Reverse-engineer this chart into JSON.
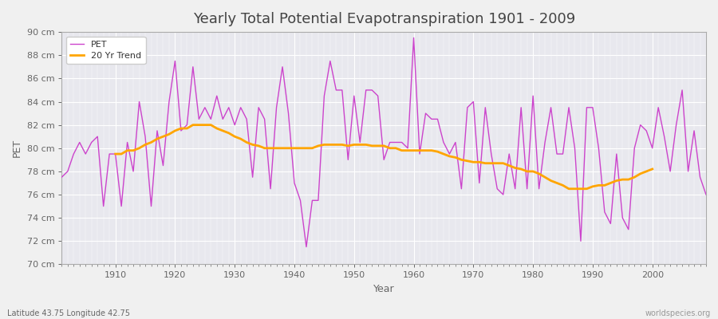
{
  "title": "Yearly Total Potential Evapotranspiration 1901 - 2009",
  "xlabel": "Year",
  "ylabel": "PET",
  "subtitle_left": "Latitude 43.75 Longitude 42.75",
  "subtitle_right": "worldspecies.org",
  "ylim": [
    70,
    90
  ],
  "ytick_values": [
    70,
    72,
    74,
    76,
    78,
    80,
    82,
    84,
    86,
    88,
    90
  ],
  "xtick_values": [
    1910,
    1920,
    1930,
    1940,
    1950,
    1960,
    1970,
    1980,
    1990,
    2000
  ],
  "pet_color": "#CC44CC",
  "trend_color": "#FFA500",
  "fig_bg_color": "#F0F0F0",
  "plot_bg_color": "#E8E8EE",
  "grid_color": "#FFFFFF",
  "title_color": "#444444",
  "label_color": "#666666",
  "tick_color": "#666666",
  "years": [
    1901,
    1902,
    1903,
    1904,
    1905,
    1906,
    1907,
    1908,
    1909,
    1910,
    1911,
    1912,
    1913,
    1914,
    1915,
    1916,
    1917,
    1918,
    1919,
    1920,
    1921,
    1922,
    1923,
    1924,
    1925,
    1926,
    1927,
    1928,
    1929,
    1930,
    1931,
    1932,
    1933,
    1934,
    1935,
    1936,
    1937,
    1938,
    1939,
    1940,
    1941,
    1942,
    1943,
    1944,
    1945,
    1946,
    1947,
    1948,
    1949,
    1950,
    1951,
    1952,
    1953,
    1954,
    1955,
    1956,
    1957,
    1958,
    1959,
    1960,
    1961,
    1962,
    1963,
    1964,
    1965,
    1966,
    1967,
    1968,
    1969,
    1970,
    1971,
    1972,
    1973,
    1974,
    1975,
    1976,
    1977,
    1978,
    1979,
    1980,
    1981,
    1982,
    1983,
    1984,
    1985,
    1986,
    1987,
    1988,
    1989,
    1990,
    1991,
    1992,
    1993,
    1994,
    1995,
    1996,
    1997,
    1998,
    1999,
    2000,
    2001,
    2002,
    2003,
    2004,
    2005,
    2006,
    2007,
    2008,
    2009
  ],
  "pet_values": [
    77.5,
    78.0,
    79.5,
    80.5,
    79.5,
    80.5,
    81.0,
    75.0,
    79.5,
    79.5,
    75.0,
    80.5,
    78.0,
    84.0,
    81.0,
    75.0,
    81.5,
    78.5,
    84.0,
    87.5,
    81.5,
    82.0,
    87.0,
    82.5,
    83.5,
    82.5,
    84.5,
    82.5,
    83.5,
    82.0,
    83.5,
    82.5,
    77.5,
    83.5,
    82.5,
    76.5,
    83.5,
    87.0,
    83.0,
    77.0,
    75.5,
    71.5,
    75.5,
    75.5,
    84.5,
    87.5,
    85.0,
    85.0,
    79.0,
    84.5,
    80.5,
    85.0,
    85.0,
    84.5,
    79.0,
    80.5,
    80.5,
    80.5,
    80.0,
    89.5,
    79.5,
    83.0,
    82.5,
    82.5,
    80.5,
    79.5,
    80.5,
    76.5,
    83.5,
    84.0,
    77.0,
    83.5,
    79.5,
    76.5,
    76.0,
    79.5,
    76.5,
    83.5,
    76.5,
    84.5,
    76.5,
    80.5,
    83.5,
    79.5,
    79.5,
    83.5,
    80.0,
    72.0,
    83.5,
    83.5,
    80.0,
    74.5,
    73.5,
    79.5,
    74.0,
    73.0,
    80.0,
    82.0,
    81.5,
    80.0,
    83.5,
    81.0,
    78.0,
    82.0,
    85.0,
    78.0,
    81.5,
    77.5,
    76.0
  ],
  "trend_values": [
    null,
    null,
    null,
    null,
    null,
    null,
    null,
    null,
    null,
    79.5,
    79.5,
    79.8,
    79.8,
    80.0,
    80.3,
    80.5,
    80.8,
    81.0,
    81.2,
    81.5,
    81.7,
    81.7,
    82.0,
    82.0,
    82.0,
    82.0,
    81.7,
    81.5,
    81.3,
    81.0,
    80.8,
    80.5,
    80.3,
    80.2,
    80.0,
    80.0,
    80.0,
    80.0,
    80.0,
    80.0,
    80.0,
    80.0,
    80.0,
    80.2,
    80.3,
    80.3,
    80.3,
    80.3,
    80.2,
    80.3,
    80.3,
    80.3,
    80.2,
    80.2,
    80.2,
    80.0,
    80.0,
    79.8,
    79.8,
    79.8,
    79.8,
    79.8,
    79.8,
    79.7,
    79.5,
    79.3,
    79.2,
    79.0,
    78.9,
    78.8,
    78.8,
    78.7,
    78.7,
    78.7,
    78.7,
    78.5,
    78.3,
    78.2,
    78.0,
    78.0,
    77.8,
    77.5,
    77.2,
    77.0,
    76.8,
    76.5,
    76.5,
    76.5,
    76.5,
    76.7,
    76.8,
    76.8,
    77.0,
    77.2,
    77.3,
    77.3,
    77.5,
    77.8,
    78.0,
    78.2,
    null,
    null,
    null,
    null,
    null,
    null,
    null,
    null,
    null
  ]
}
